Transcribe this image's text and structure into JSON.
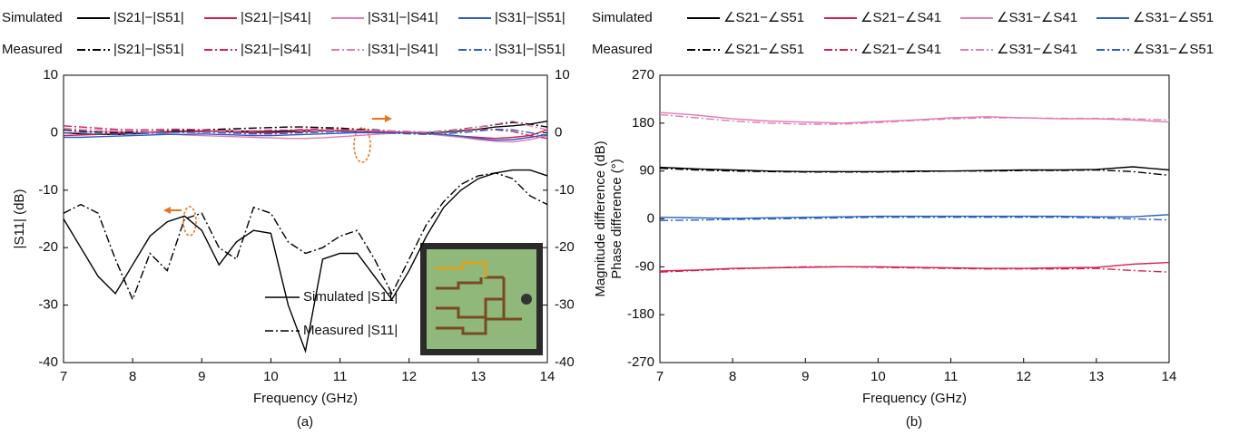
{
  "chart_data": [
    {
      "type": "line",
      "label": "(a)",
      "x_label": "Frequency (GHz)",
      "y_label": "|S11| (dB)",
      "y2_label": "Magnitude difference (dB)",
      "legend_rows": [
        "Simulated",
        "Measured"
      ],
      "xlim": [
        7,
        14
      ],
      "xticks": [
        7,
        8,
        9,
        10,
        11,
        12,
        13,
        14
      ],
      "ylim": [
        -40,
        10
      ],
      "yticks": [
        -40,
        -30,
        -20,
        -10,
        0,
        10
      ],
      "y2lim": [
        -40,
        10
      ],
      "y2ticks": [
        -40,
        -30,
        -20,
        -10,
        0,
        10
      ],
      "x": [
        7,
        7.25,
        7.5,
        7.75,
        8,
        8.25,
        8.5,
        8.75,
        9,
        9.25,
        9.5,
        9.75,
        10,
        10.25,
        10.5,
        10.75,
        11,
        11.25,
        11.5,
        11.75,
        12,
        12.25,
        12.5,
        12.75,
        13,
        13.25,
        13.5,
        13.75,
        14
      ],
      "series": [
        {
          "name": "|S21|−|S51|",
          "color": "#000000",
          "line_style": "solid",
          "axis": "y2",
          "values": [
            0,
            -0.2,
            -0.3,
            -0.3,
            -0.2,
            0,
            0.1,
            0.2,
            0.2,
            0.3,
            0.3,
            0.2,
            0.2,
            0.3,
            0.4,
            0.4,
            0.3,
            0.2,
            0.2,
            0.1,
            0,
            0,
            0.1,
            0.3,
            0.6,
            1,
            1.2,
            1.5,
            2
          ]
        },
        {
          "name": "|S21|−|S41|",
          "color": "#d6204f",
          "line_style": "solid",
          "axis": "y2",
          "values": [
            -0.5,
            -0.4,
            -0.3,
            -0.1,
            0,
            0.1,
            0.2,
            0.3,
            0.3,
            0.2,
            0.1,
            0,
            0,
            0.1,
            0.2,
            0.3,
            0.4,
            0.3,
            0.2,
            0.1,
            0,
            -0.2,
            -0.4,
            -0.6,
            -0.8,
            -1,
            -0.8,
            -0.5,
            0.5
          ]
        },
        {
          "name": "|S31|−|S41|",
          "color": "#e27bb6",
          "line_style": "solid",
          "axis": "y2",
          "values": [
            0,
            0.1,
            0.2,
            0.2,
            0.1,
            0,
            -0.2,
            -0.4,
            -0.5,
            -0.6,
            -0.7,
            -0.8,
            -0.9,
            -1,
            -1,
            -0.9,
            -0.7,
            -0.5,
            -0.3,
            -0.1,
            0,
            -0.2,
            -0.5,
            -0.8,
            -1.2,
            -1.5,
            -1.6,
            -1.2,
            -0.5
          ]
        },
        {
          "name": "|S31|−|S51|",
          "color": "#2a5fbf",
          "line_style": "solid",
          "axis": "y2",
          "values": [
            -0.8,
            -0.8,
            -0.7,
            -0.6,
            -0.5,
            -0.4,
            -0.3,
            -0.3,
            -0.2,
            -0.3,
            -0.4,
            -0.5,
            -0.5,
            -0.4,
            -0.3,
            -0.2,
            -0.1,
            0,
            0,
            0,
            0,
            -0.1,
            -0.3,
            -0.6,
            -1,
            -1.3,
            -1.2,
            -0.8,
            -0.3
          ]
        },
        {
          "name": "|S21|−|S51|",
          "color": "#000000",
          "line_style": "dash-dot",
          "axis": "y2",
          "values": [
            0.5,
            0.3,
            0.1,
            0,
            0.1,
            0.2,
            0.3,
            0.4,
            0.5,
            0.6,
            0.7,
            0.8,
            0.9,
            1,
            1,
            0.9,
            0.8,
            0.6,
            0.5,
            0.3,
            0.2,
            0.1,
            0.3,
            0.6,
            1,
            1.4,
            1.8,
            1.5,
            1
          ]
        },
        {
          "name": "|S21|−|S41|",
          "color": "#d6204f",
          "line_style": "dash-dot",
          "axis": "y2",
          "values": [
            1.2,
            1,
            0.8,
            0.6,
            0.5,
            0.5,
            0.6,
            0.6,
            0.5,
            0.4,
            0.3,
            0.3,
            0.4,
            0.5,
            0.6,
            0.7,
            0.6,
            0.5,
            0.3,
            0.1,
            0,
            0,
            0.2,
            0.4,
            0.6,
            0.5,
            0.2,
            -0.5,
            -1
          ]
        },
        {
          "name": "|S31|−|S41|",
          "color": "#e27bb6",
          "line_style": "dash-dot",
          "axis": "y2",
          "values": [
            0.8,
            0.6,
            0.5,
            0.4,
            0.3,
            0.2,
            0.1,
            0,
            0.1,
            0.2,
            0.3,
            0.4,
            0.5,
            0.5,
            0.4,
            0.3,
            0.2,
            0.3,
            0.4,
            0.3,
            0.2,
            0.1,
            0.2,
            0.5,
            1,
            1.5,
            2,
            1.2,
            0.5
          ]
        },
        {
          "name": "|S31|−|S51|",
          "color": "#2a5fbf",
          "line_style": "dash-dot",
          "axis": "y2",
          "values": [
            0,
            -0.1,
            -0.2,
            -0.3,
            -0.2,
            -0.1,
            0,
            0.1,
            0.1,
            0,
            -0.1,
            -0.2,
            -0.2,
            -0.1,
            0,
            0.1,
            0.2,
            0.1,
            0,
            -0.1,
            -0.2,
            -0.3,
            -0.2,
            0,
            0.3,
            0.6,
            0.5,
            0,
            -0.5
          ]
        },
        {
          "name": "Simulated |S11|",
          "color": "#000000",
          "line_style": "solid",
          "values": [
            -15,
            -20,
            -25,
            -28,
            -23,
            -18,
            -15.5,
            -14.5,
            -17,
            -23,
            -19,
            -17,
            -17.5,
            -30,
            -38,
            -22,
            -21,
            -21,
            -25,
            -29,
            -24,
            -18,
            -13,
            -10,
            -8,
            -7,
            -6.5,
            -6.5,
            -7.5
          ]
        },
        {
          "name": "Measured |S11|",
          "color": "#000000",
          "line_style": "dash-dot",
          "values": [
            -14,
            -12.5,
            -14,
            -22,
            -29,
            -21,
            -24,
            -15,
            -14,
            -20,
            -22,
            -13,
            -14,
            -19,
            -21,
            -20,
            -18,
            -17,
            -22,
            -28,
            -22,
            -16,
            -12,
            -9,
            -7.5,
            -7,
            -8,
            -11,
            -12.5
          ]
        }
      ]
    },
    {
      "type": "line",
      "label": "(b)",
      "x_label": "Frequency (GHz)",
      "y_label": "Phase difference (°)",
      "legend_rows": [
        "Simulated",
        "Measured"
      ],
      "xlim": [
        7,
        14
      ],
      "xticks": [
        7,
        8,
        9,
        10,
        11,
        12,
        13,
        14
      ],
      "ylim": [
        -270,
        270
      ],
      "yticks": [
        -270,
        -180,
        -90,
        0,
        90,
        180,
        270
      ],
      "x": [
        7,
        7.5,
        8,
        8.5,
        9,
        9.5,
        10,
        10.5,
        11,
        11.5,
        12,
        12.5,
        13,
        13.5,
        14
      ],
      "series": [
        {
          "name": "∠S21−∠S51",
          "color": "#000000",
          "line_style": "solid",
          "values": [
            97,
            94,
            92,
            90,
            89,
            89,
            89,
            90,
            90,
            91,
            92,
            92,
            93,
            98,
            92
          ]
        },
        {
          "name": "∠S21−∠S41",
          "color": "#d6204f",
          "line_style": "solid",
          "values": [
            -98,
            -96,
            -93,
            -92,
            -91,
            -90,
            -90,
            -91,
            -92,
            -93,
            -93,
            -92,
            -91,
            -85,
            -82
          ]
        },
        {
          "name": "∠S31−∠S41",
          "color": "#e27bb6",
          "line_style": "solid",
          "values": [
            200,
            195,
            188,
            184,
            182,
            180,
            183,
            186,
            190,
            192,
            190,
            188,
            188,
            186,
            182
          ]
        },
        {
          "name": "∠S31−∠S51",
          "color": "#2a5fbf",
          "line_style": "solid",
          "values": [
            3,
            2,
            1,
            2,
            3,
            4,
            5,
            5,
            5,
            5,
            5,
            5,
            4,
            4,
            8
          ]
        },
        {
          "name": "∠S21−∠S51",
          "color": "#000000",
          "line_style": "dash-dot",
          "values": [
            95,
            92,
            90,
            89,
            88,
            88,
            88,
            89,
            90,
            90,
            91,
            91,
            92,
            89,
            82
          ]
        },
        {
          "name": "∠S21−∠S41",
          "color": "#d6204f",
          "line_style": "dash-dot",
          "values": [
            -100,
            -97,
            -94,
            -92,
            -90,
            -90,
            -91,
            -92,
            -93,
            -94,
            -94,
            -94,
            -93,
            -97,
            -100
          ]
        },
        {
          "name": "∠S31−∠S41",
          "color": "#e27bb6",
          "line_style": "dash-dot",
          "values": [
            196,
            190,
            184,
            180,
            178,
            178,
            181,
            185,
            188,
            190,
            190,
            189,
            189,
            188,
            186
          ]
        },
        {
          "name": "∠S31−∠S51",
          "color": "#2a5fbf",
          "line_style": "dash-dot",
          "values": [
            -3,
            -2,
            -1,
            0,
            1,
            2,
            3,
            3,
            3,
            3,
            3,
            3,
            2,
            0,
            -2
          ]
        }
      ]
    }
  ]
}
